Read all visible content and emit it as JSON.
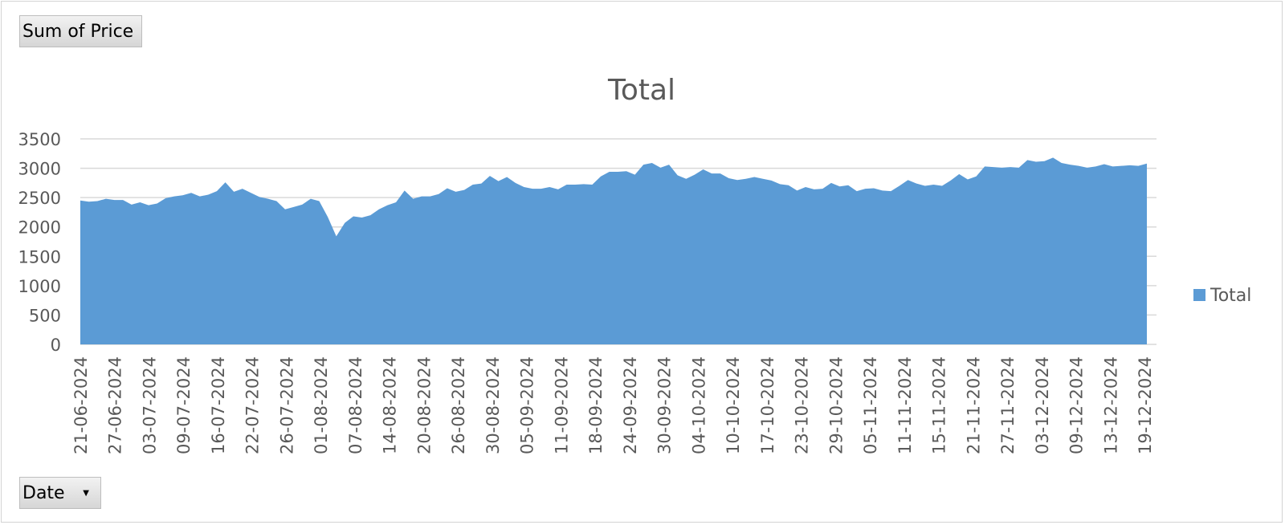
{
  "pivot": {
    "value_field_label": "Sum of Price",
    "axis_field_label": "Date"
  },
  "colors": {
    "series": "#5b9bd5",
    "grid": "#d9d9d9",
    "text": "#595959"
  },
  "chart_data": {
    "type": "area",
    "title": "Total",
    "xlabel": "",
    "ylabel": "",
    "ylim": [
      0,
      3500
    ],
    "yticks": [
      0,
      500,
      1000,
      1500,
      2000,
      2500,
      3000,
      3500
    ],
    "grid": true,
    "legend_position": "right",
    "x_tick_labels": [
      "21-06-2024",
      "27-06-2024",
      "03-07-2024",
      "09-07-2024",
      "16-07-2024",
      "22-07-2024",
      "26-07-2024",
      "01-08-2024",
      "07-08-2024",
      "14-08-2024",
      "20-08-2024",
      "26-08-2024",
      "30-08-2024",
      "05-09-2024",
      "11-09-2024",
      "18-09-2024",
      "24-09-2024",
      "30-09-2024",
      "04-10-2024",
      "10-10-2024",
      "17-10-2024",
      "23-10-2024",
      "29-10-2024",
      "05-11-2024",
      "11-11-2024",
      "15-11-2024",
      "21-11-2024",
      "27-11-2024",
      "03-12-2024",
      "09-12-2024",
      "13-12-2024",
      "19-12-2024"
    ],
    "series": [
      {
        "name": "Total",
        "values": [
          2450,
          2430,
          2440,
          2480,
          2460,
          2460,
          2380,
          2420,
          2370,
          2400,
          2490,
          2520,
          2540,
          2580,
          2520,
          2550,
          2610,
          2760,
          2600,
          2650,
          2580,
          2510,
          2480,
          2440,
          2300,
          2340,
          2380,
          2480,
          2440,
          2170,
          1840,
          2070,
          2180,
          2160,
          2200,
          2300,
          2370,
          2420,
          2620,
          2480,
          2520,
          2520,
          2560,
          2660,
          2600,
          2630,
          2720,
          2740,
          2870,
          2780,
          2850,
          2750,
          2680,
          2650,
          2650,
          2680,
          2640,
          2720,
          2720,
          2730,
          2720,
          2860,
          2940,
          2940,
          2950,
          2890,
          3060,
          3090,
          3010,
          3060,
          2880,
          2820,
          2890,
          2980,
          2910,
          2910,
          2830,
          2800,
          2820,
          2850,
          2820,
          2790,
          2730,
          2710,
          2620,
          2680,
          2640,
          2650,
          2750,
          2690,
          2710,
          2610,
          2650,
          2660,
          2620,
          2610,
          2700,
          2800,
          2740,
          2700,
          2720,
          2700,
          2790,
          2900,
          2810,
          2860,
          3030,
          3020,
          3010,
          3020,
          3010,
          3140,
          3110,
          3120,
          3180,
          3090,
          3060,
          3040,
          3010,
          3030,
          3070,
          3030,
          3040,
          3050,
          3040,
          3080
        ]
      }
    ]
  }
}
